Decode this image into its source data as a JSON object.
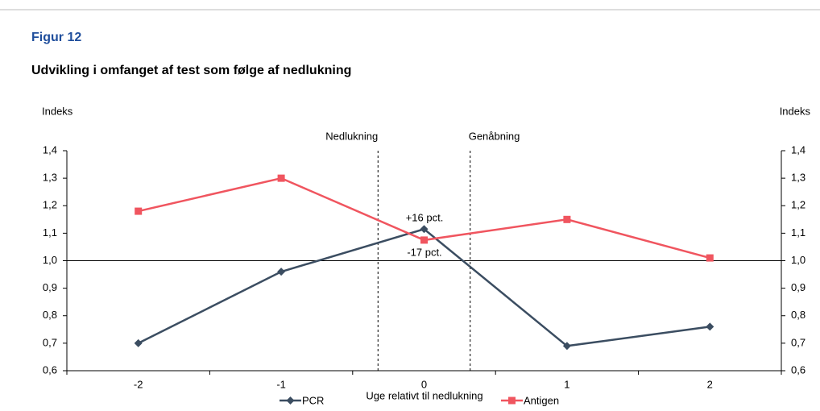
{
  "chart_data": {
    "type": "line",
    "kicker": "Figur 12",
    "title": "Udvikling i omfanget af test som følge af nedlukning",
    "y_label": "Indeks",
    "y2_label": "Indeks",
    "x_label": "Uge relativt til nedlukning",
    "categories": [
      "-2",
      "-1",
      "0",
      "1",
      "2"
    ],
    "series": [
      {
        "name": "PCR",
        "color": "#3b4d61",
        "marker": "diamond",
        "values": [
          0.7,
          0.96,
          1.115,
          0.69,
          0.76
        ]
      },
      {
        "name": "Antigen",
        "color": "#f0555f",
        "marker": "square",
        "values": [
          1.18,
          1.3,
          1.075,
          1.15,
          1.01
        ]
      }
    ],
    "ylim": [
      0.6,
      1.4
    ],
    "yticks": [
      {
        "value": 0.6,
        "label": "0,6"
      },
      {
        "value": 0.7,
        "label": "0,7"
      },
      {
        "value": 0.8,
        "label": "0,8"
      },
      {
        "value": 0.9,
        "label": "0,9"
      },
      {
        "value": 1.0,
        "label": "1,0"
      },
      {
        "value": 1.1,
        "label": "1,1"
      },
      {
        "value": 1.2,
        "label": "1,2"
      },
      {
        "value": 1.3,
        "label": "1,3"
      },
      {
        "value": 1.4,
        "label": "1,4"
      }
    ],
    "y2lim": [
      0.6,
      1.4
    ],
    "y2ticks": [
      {
        "value": 0.6,
        "label": "0,6"
      },
      {
        "value": 0.7,
        "label": "0,7"
      },
      {
        "value": 0.8,
        "label": "0,8"
      },
      {
        "value": 0.9,
        "label": "0,9"
      },
      {
        "value": 1.0,
        "label": "1,0"
      },
      {
        "value": 1.1,
        "label": "1,1"
      },
      {
        "value": 1.2,
        "label": "1,2"
      },
      {
        "value": 1.3,
        "label": "1,3"
      },
      {
        "value": 1.4,
        "label": "1,4"
      }
    ],
    "hline": 1.0,
    "events": [
      "Nedlukning",
      "Genåbning"
    ],
    "annotations": [
      "+16 pct.",
      "-17 pct."
    ],
    "grid": false
  }
}
